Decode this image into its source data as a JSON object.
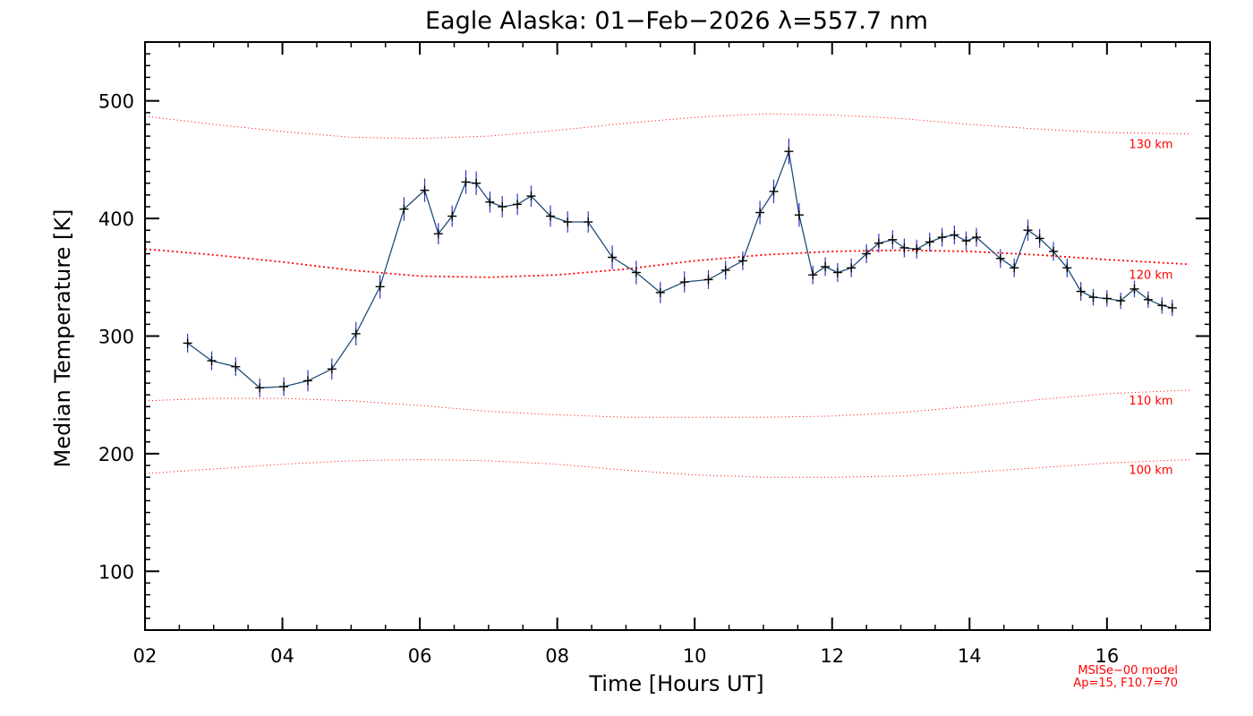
{
  "chart_data": {
    "type": "line",
    "title": "Eagle Alaska: 01−Feb−2026 λ=557.7 nm",
    "xlabel": "Time [Hours UT]",
    "ylabel": "Median Temperature [K]",
    "xlim": [
      2,
      17.5
    ],
    "ylim": [
      50,
      550
    ],
    "xticks": [
      2,
      4,
      6,
      8,
      10,
      12,
      14,
      16
    ],
    "xtick_labels": [
      "02",
      "04",
      "06",
      "08",
      "10",
      "12",
      "14",
      "16"
    ],
    "yticks": [
      100,
      200,
      300,
      400,
      500
    ],
    "ytick_labels": [
      "100",
      "200",
      "300",
      "400",
      "500"
    ],
    "colors": {
      "series": "#1f4e79",
      "marker": "#000000",
      "errorbar": "#3333cc",
      "model": "#ff0000"
    },
    "series": [
      {
        "name": "Median Temperature",
        "x": [
          2.62,
          2.97,
          3.32,
          3.67,
          4.02,
          4.37,
          4.72,
          5.07,
          5.42,
          5.77,
          6.07,
          6.27,
          6.47,
          6.67,
          6.82,
          7.02,
          7.2,
          7.42,
          7.62,
          7.9,
          8.15,
          8.45,
          8.8,
          9.15,
          9.5,
          9.85,
          10.2,
          10.45,
          10.7,
          10.95,
          11.15,
          11.37,
          11.52,
          11.72,
          11.9,
          12.08,
          12.28,
          12.5,
          12.68,
          12.88,
          13.05,
          13.23,
          13.42,
          13.6,
          13.78,
          13.95,
          14.1,
          14.45,
          14.65,
          14.85,
          15.02,
          15.22,
          15.42,
          15.62,
          15.8,
          16.0,
          16.2,
          16.4,
          16.6,
          16.8,
          16.95
        ],
        "y": [
          294,
          279,
          274,
          256,
          257,
          262,
          272,
          302,
          342,
          408,
          424,
          387,
          402,
          431,
          430,
          414,
          410,
          412,
          419,
          402,
          397,
          397,
          367,
          354,
          337,
          346,
          348,
          356,
          364,
          405,
          423,
          457,
          403,
          352,
          359,
          354,
          358,
          370,
          379,
          382,
          375,
          374,
          380,
          384,
          386,
          381,
          384,
          366,
          358,
          390,
          383,
          372,
          358,
          338,
          333,
          332,
          330,
          340,
          331,
          326,
          324
        ],
        "err": [
          8,
          8,
          8,
          8,
          8,
          9,
          9,
          10,
          10,
          10,
          10,
          9,
          9,
          10,
          10,
          9,
          9,
          9,
          9,
          9,
          9,
          9,
          10,
          10,
          9,
          9,
          8,
          8,
          8,
          10,
          10,
          11,
          10,
          8,
          8,
          8,
          8,
          8,
          8,
          8,
          8,
          8,
          8,
          8,
          8,
          8,
          8,
          8,
          8,
          9,
          8,
          8,
          8,
          8,
          7,
          7,
          7,
          7,
          7,
          7,
          7
        ]
      }
    ],
    "model_curves": [
      {
        "label": "130 km",
        "x": [
          2,
          3,
          4,
          5,
          6,
          7,
          8,
          9,
          10,
          11,
          12,
          13,
          14,
          15,
          16,
          17.2
        ],
        "y": [
          487,
          480,
          474,
          469,
          468,
          470,
          475,
          481,
          486,
          489,
          488,
          485,
          480,
          476,
          473,
          472
        ]
      },
      {
        "label": "120 km",
        "x": [
          2,
          3,
          4,
          5,
          6,
          7,
          8,
          9,
          10,
          11,
          12,
          13,
          14,
          15,
          16,
          17.2
        ],
        "y": [
          374,
          369,
          363,
          356,
          351,
          350,
          352,
          357,
          364,
          369,
          372,
          373,
          372,
          369,
          365,
          361
        ]
      },
      {
        "label": "110 km",
        "x": [
          2,
          3,
          4,
          5,
          6,
          7,
          8,
          9,
          10,
          11,
          12,
          13,
          14,
          15,
          16,
          17.2
        ],
        "y": [
          245,
          247,
          247,
          245,
          241,
          236,
          233,
          231,
          231,
          231,
          232,
          235,
          240,
          246,
          251,
          254
        ]
      },
      {
        "label": "100 km",
        "x": [
          2,
          3,
          4,
          5,
          6,
          7,
          8,
          9,
          10,
          11,
          12,
          13,
          14,
          15,
          16,
          17.2
        ],
        "y": [
          183,
          187,
          191,
          194,
          195,
          194,
          191,
          186,
          182,
          180,
          180,
          181,
          184,
          188,
          192,
          195
        ]
      }
    ],
    "annotations": [
      "MSISe−00 model",
      "Ap=15, F10.7=70"
    ]
  }
}
